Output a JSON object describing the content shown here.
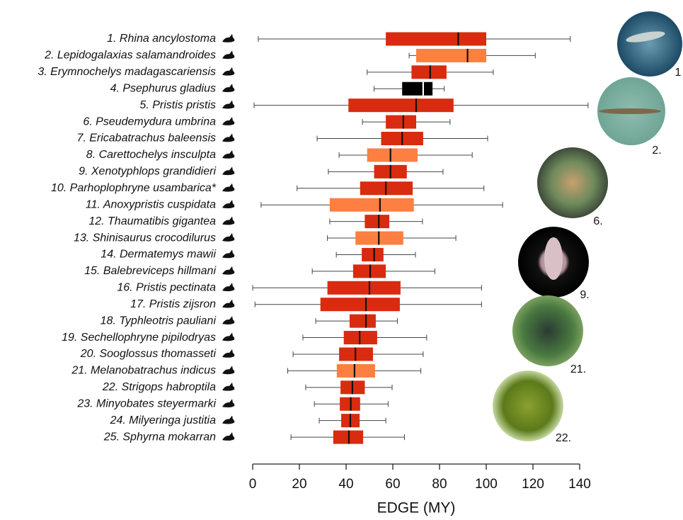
{
  "chart_data": {
    "type": "box",
    "xlabel": "EDGE (MY)",
    "xlim": [
      0,
      140
    ],
    "xticks": [
      0,
      20,
      40,
      60,
      80,
      100,
      120,
      140
    ],
    "categories": [
      "1. Rhina ancylostoma",
      "2. Lepidogalaxias salamandroides",
      "3. Erymnochelys madagascariensis",
      "4. Psephurus gladius",
      "5. Pristis pristis",
      "6. Pseudemydura umbrina",
      "7. Ericabatrachus baleensis",
      "8. Carettochelys insculpta",
      "9. Xenotyphlops grandidieri",
      "10. Parhoplophryne usambarica*",
      "11. Anoxypristis cuspidata",
      "12. Thaumatibis gigantea",
      "13. Shinisaurus crocodilurus",
      "14. Dermatemys mawii",
      "15. Balebreviceps hillmani",
      "16. Pristis pectinata",
      "17. Pristis zijsron",
      "18. Typhleotris pauliani",
      "19. Sechellophryne pipilodryas",
      "20. Sooglossus thomasseti",
      "21. Melanobatrachus indicus",
      "22. Strigops habroptila",
      "23. Minyobates steyermarki",
      "24. Milyeringa justitia",
      "25. Sphyrna mokarran"
    ],
    "boxes": [
      {
        "whislo": 2.4,
        "q1": 57,
        "med": 88,
        "q3": 100,
        "whishi": 136,
        "color": "#d92b0f"
      },
      {
        "whislo": 67,
        "q1": 70,
        "med": 92,
        "q3": 100,
        "whishi": 121,
        "color": "#fd7f42"
      },
      {
        "whislo": 49,
        "q1": 68,
        "med": 76,
        "q3": 83,
        "whishi": 103,
        "color": "#d92b0f"
      },
      {
        "whislo": 52,
        "q1": 64,
        "med": 73,
        "q3": 77,
        "whishi": 82,
        "color": "#000000"
      },
      {
        "whislo": 0.6,
        "q1": 41,
        "med": 70,
        "q3": 86,
        "whishi": 143.6,
        "color": "#d92b0f"
      },
      {
        "whislo": 47,
        "q1": 57,
        "med": 64.5,
        "q3": 70,
        "whishi": 84.5,
        "color": "#d92b0f"
      },
      {
        "whislo": 27.6,
        "q1": 55,
        "med": 64,
        "q3": 73,
        "whishi": 100.6,
        "color": "#d92b0f"
      },
      {
        "whislo": 37,
        "q1": 49,
        "med": 59,
        "q3": 70.6,
        "whishi": 94,
        "color": "#fd7f42"
      },
      {
        "whislo": 32.4,
        "q1": 52,
        "med": 59,
        "q3": 66,
        "whishi": 81.5,
        "color": "#d92b0f"
      },
      {
        "whislo": 19,
        "q1": 46,
        "med": 57,
        "q3": 68.5,
        "whishi": 99,
        "color": "#d92b0f"
      },
      {
        "whislo": 3.6,
        "q1": 33,
        "med": 54.5,
        "q3": 69,
        "whishi": 107,
        "color": "#fd7f42"
      },
      {
        "whislo": 33,
        "q1": 48,
        "med": 54,
        "q3": 58.5,
        "whishi": 72.7,
        "color": "#d92b0f"
      },
      {
        "whislo": 32,
        "q1": 44,
        "med": 54,
        "q3": 64.5,
        "whishi": 87,
        "color": "#fd7f42"
      },
      {
        "whislo": 35.8,
        "q1": 46.7,
        "med": 52,
        "q3": 56,
        "whishi": 69.7,
        "color": "#d92b0f"
      },
      {
        "whislo": 25.5,
        "q1": 43,
        "med": 50.3,
        "q3": 57,
        "whishi": 78,
        "color": "#d92b0f"
      },
      {
        "whislo": 0,
        "q1": 32,
        "med": 50,
        "q3": 63.3,
        "whishi": 98,
        "color": "#d92b0f"
      },
      {
        "whislo": 1,
        "q1": 29,
        "med": 48.5,
        "q3": 63,
        "whishi": 98,
        "color": "#d92b0f"
      },
      {
        "whislo": 27,
        "q1": 41.5,
        "med": 48.5,
        "q3": 52.7,
        "whishi": 62,
        "color": "#d92b0f"
      },
      {
        "whislo": 21.5,
        "q1": 39,
        "med": 45.8,
        "q3": 53.3,
        "whishi": 74.5,
        "color": "#d92b0f"
      },
      {
        "whislo": 17.3,
        "q1": 37,
        "med": 44,
        "q3": 51.5,
        "whishi": 73,
        "color": "#d92b0f"
      },
      {
        "whislo": 15,
        "q1": 36,
        "med": 43.6,
        "q3": 52.4,
        "whishi": 72,
        "color": "#fd7f42"
      },
      {
        "whislo": 22.7,
        "q1": 37.6,
        "med": 42.7,
        "q3": 48,
        "whishi": 59.7,
        "color": "#d92b0f"
      },
      {
        "whislo": 26.4,
        "q1": 37.3,
        "med": 42,
        "q3": 46,
        "whishi": 58,
        "color": "#d92b0f"
      },
      {
        "whislo": 28.5,
        "q1": 37.9,
        "med": 41.8,
        "q3": 45.8,
        "whishi": 57,
        "color": "#d92b0f"
      },
      {
        "whislo": 16.4,
        "q1": 34.5,
        "med": 41.2,
        "q3": 47.3,
        "whishi": 65,
        "color": "#d92b0f"
      }
    ],
    "photo_labels": [
      "1",
      "2.",
      "6.",
      "9.",
      "21.",
      "22."
    ]
  }
}
